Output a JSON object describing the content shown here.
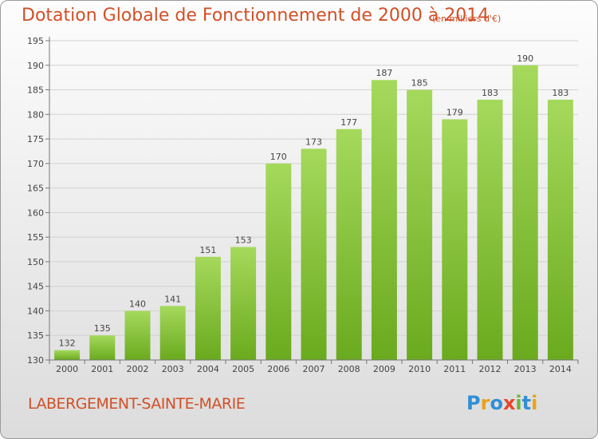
{
  "header": {
    "title": "Dotation Globale de Fonctionnement de 2000 à 2014",
    "subtitle": "(en milliers d'€)"
  },
  "footer": {
    "commune": "LABERGEMENT-SAINTE-MARIE",
    "logo": "Proxiti",
    "logo_colors": [
      "#2f8fd6",
      "#e8a21c",
      "#2f8fd6",
      "#e8442a",
      "#6db33f",
      "#2f8fd6",
      "#e8a21c"
    ]
  },
  "colors": {
    "title": "#d24f27",
    "bar_light": "#a5d95c",
    "bar_dark": "#6aaa1e",
    "grid": "#d2d2d2",
    "axis": "#777777",
    "text": "#444444"
  },
  "chart_data": {
    "type": "bar",
    "title": "Dotation Globale de Fonctionnement de 2000 à 2014",
    "xlabel": "",
    "ylabel": "(en milliers d'€)",
    "categories": [
      "2000",
      "2001",
      "2002",
      "2003",
      "2004",
      "2005",
      "2006",
      "2007",
      "2008",
      "2009",
      "2010",
      "2011",
      "2012",
      "2013",
      "2014"
    ],
    "values": [
      132,
      135,
      140,
      141,
      151,
      153,
      170,
      173,
      177,
      187,
      185,
      179,
      183,
      190,
      183
    ],
    "ylim": [
      130,
      195
    ],
    "yticks": [
      130,
      135,
      140,
      145,
      150,
      155,
      160,
      165,
      170,
      175,
      180,
      185,
      190,
      195
    ],
    "grid": true
  }
}
